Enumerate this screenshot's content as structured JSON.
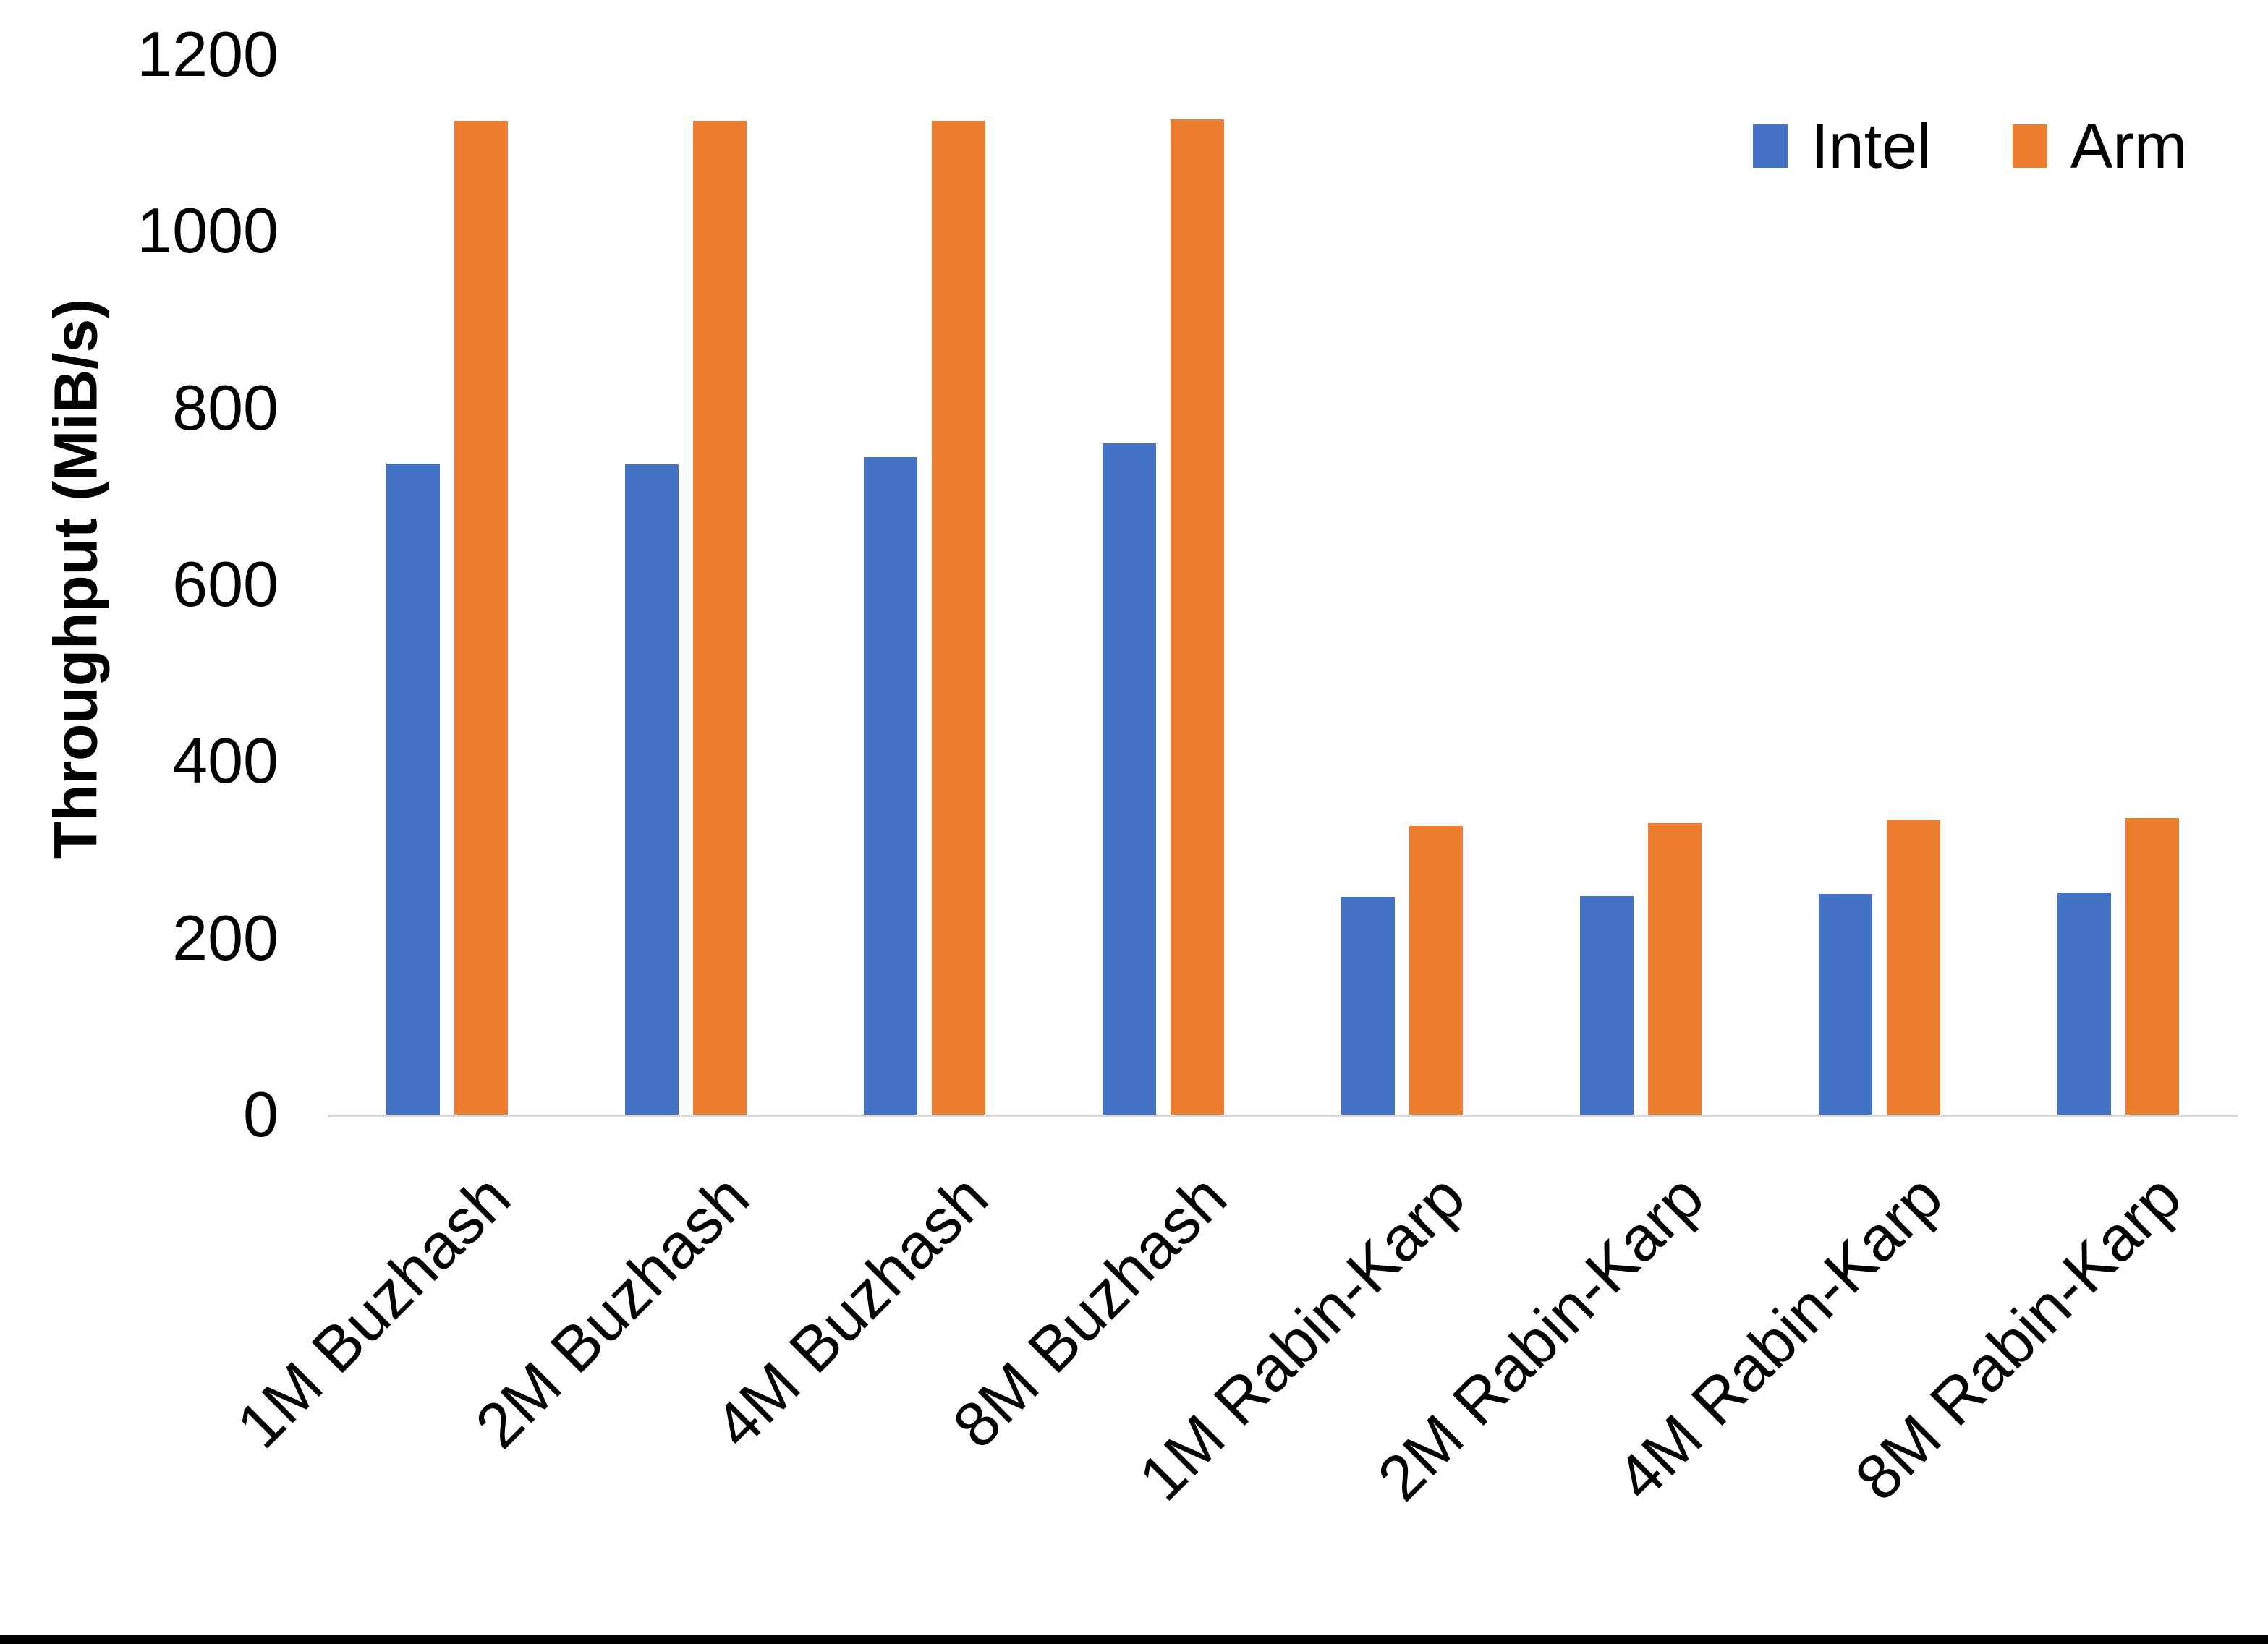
{
  "chart_data": {
    "type": "bar",
    "title": "",
    "xlabel": "",
    "ylabel": "Throughput (MiB/s)",
    "ylim": [
      0,
      1200
    ],
    "yticks": [
      0,
      200,
      400,
      600,
      800,
      1000,
      1200
    ],
    "grid": false,
    "legend_position": "top-right",
    "categories": [
      "1M Buzhash",
      "2M Buzhash",
      "4M Buzhash",
      "8M Buzhash",
      "1M Rabin-Karp",
      "2M Rabin-Karp",
      "4M Rabin-Karp",
      "8M Rabin-Karp"
    ],
    "series": [
      {
        "name": "Intel",
        "color": "#4472C4",
        "values": [
          737,
          736,
          744,
          760,
          246,
          247,
          250,
          251
        ]
      },
      {
        "name": "Arm",
        "color": "#ED7D31",
        "values": [
          1125,
          1125,
          1125,
          1126,
          327,
          330,
          333,
          336
        ]
      }
    ]
  },
  "colors": {
    "axis_line": "#D9D9D9",
    "text": "#000000",
    "background": "#FFFFFF",
    "bottom_edge": "#000000"
  }
}
